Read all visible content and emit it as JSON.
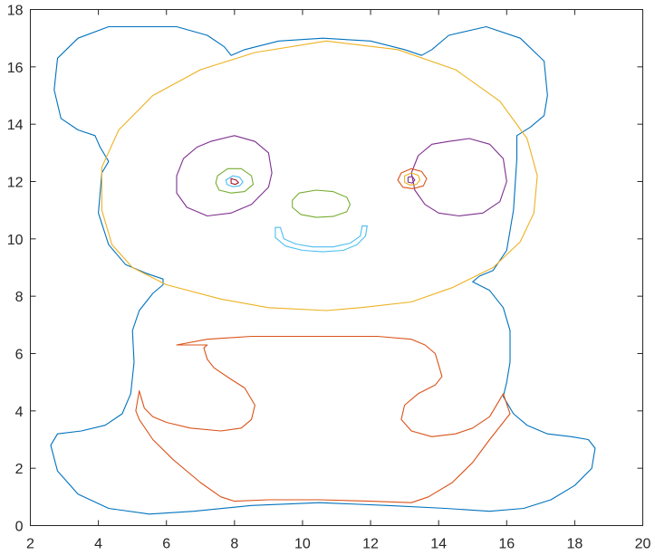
{
  "chart_data": {
    "type": "line",
    "title": "",
    "xlabel": "",
    "ylabel": "",
    "xlim": [
      2,
      20
    ],
    "ylim": [
      0,
      18
    ],
    "xticks": [
      2,
      4,
      6,
      8,
      10,
      12,
      14,
      16,
      18,
      20
    ],
    "yticks": [
      0,
      2,
      4,
      6,
      8,
      10,
      12,
      14,
      16,
      18
    ],
    "grid": false,
    "box": true,
    "series": [
      {
        "color": "#0072BD",
        "closed": true,
        "points": [
          [
            5.3,
            17.4
          ],
          [
            6.3,
            17.4
          ],
          [
            7.2,
            17.1
          ],
          [
            7.7,
            16.7
          ],
          [
            7.9,
            16.4
          ],
          [
            8.3,
            16.6
          ],
          [
            9.3,
            16.9
          ],
          [
            10.6,
            17.0
          ],
          [
            12.0,
            16.9
          ],
          [
            13.0,
            16.6
          ],
          [
            13.5,
            16.4
          ],
          [
            13.8,
            16.6
          ],
          [
            14.3,
            17.1
          ],
          [
            15.4,
            17.4
          ],
          [
            16.4,
            17.0
          ],
          [
            17.1,
            16.2
          ],
          [
            17.2,
            15.0
          ],
          [
            17.1,
            14.3
          ],
          [
            16.7,
            13.9
          ],
          [
            16.3,
            13.6
          ],
          [
            16.3,
            12.8
          ],
          [
            16.2,
            11.0
          ],
          [
            16.0,
            9.6
          ],
          [
            15.6,
            8.9
          ],
          [
            15.2,
            8.7
          ],
          [
            15.0,
            8.5
          ],
          [
            15.5,
            8.2
          ],
          [
            15.9,
            7.6
          ],
          [
            16.1,
            6.8
          ],
          [
            16.1,
            5.7
          ],
          [
            16.0,
            5.0
          ],
          [
            15.9,
            4.5
          ],
          [
            16.2,
            3.9
          ],
          [
            16.6,
            3.5
          ],
          [
            17.2,
            3.2
          ],
          [
            17.9,
            3.1
          ],
          [
            18.4,
            3.0
          ],
          [
            18.6,
            2.7
          ],
          [
            18.5,
            2.0
          ],
          [
            18.0,
            1.4
          ],
          [
            17.3,
            0.9
          ],
          [
            16.5,
            0.6
          ],
          [
            15.5,
            0.5
          ],
          [
            14.2,
            0.6
          ],
          [
            12.5,
            0.7
          ],
          [
            10.5,
            0.8
          ],
          [
            8.5,
            0.7
          ],
          [
            6.8,
            0.5
          ],
          [
            5.5,
            0.4
          ],
          [
            4.3,
            0.6
          ],
          [
            3.4,
            1.1
          ],
          [
            2.8,
            1.9
          ],
          [
            2.6,
            2.8
          ],
          [
            2.8,
            3.2
          ],
          [
            3.5,
            3.3
          ],
          [
            4.2,
            3.5
          ],
          [
            4.7,
            3.9
          ],
          [
            4.95,
            4.6
          ],
          [
            5.05,
            5.7
          ],
          [
            5.0,
            6.8
          ],
          [
            5.2,
            7.5
          ],
          [
            5.6,
            8.1
          ],
          [
            5.9,
            8.4
          ],
          [
            5.9,
            8.6
          ],
          [
            5.4,
            8.8
          ],
          [
            4.8,
            9.1
          ],
          [
            4.3,
            9.8
          ],
          [
            4.0,
            10.9
          ],
          [
            4.1,
            12.3
          ],
          [
            4.3,
            12.7
          ],
          [
            4.05,
            13.2
          ],
          [
            3.9,
            13.6
          ],
          [
            3.4,
            13.8
          ],
          [
            2.9,
            14.2
          ],
          [
            2.7,
            15.2
          ],
          [
            2.8,
            16.3
          ],
          [
            3.4,
            17.0
          ],
          [
            4.3,
            17.4
          ]
        ]
      },
      {
        "color": "#D95319",
        "closed": true,
        "points": [
          [
            6.3,
            6.3
          ],
          [
            7.2,
            6.5
          ],
          [
            8.5,
            6.6
          ],
          [
            10.5,
            6.6
          ],
          [
            12.2,
            6.6
          ],
          [
            13.2,
            6.5
          ],
          [
            13.6,
            6.3
          ],
          [
            13.9,
            6.0
          ],
          [
            14.0,
            5.6
          ],
          [
            14.1,
            5.2
          ],
          [
            13.9,
            4.9
          ],
          [
            13.4,
            4.6
          ],
          [
            13.0,
            4.2
          ],
          [
            12.9,
            3.7
          ],
          [
            13.2,
            3.3
          ],
          [
            13.8,
            3.1
          ],
          [
            14.5,
            3.2
          ],
          [
            15.0,
            3.4
          ],
          [
            15.5,
            3.8
          ],
          [
            15.8,
            4.4
          ],
          [
            15.9,
            4.6
          ],
          [
            16.1,
            3.9
          ],
          [
            15.9,
            3.6
          ],
          [
            15.5,
            3.0
          ],
          [
            15.0,
            2.2
          ],
          [
            14.4,
            1.5
          ],
          [
            13.7,
            1.0
          ],
          [
            13.2,
            0.8
          ],
          [
            12.0,
            0.85
          ],
          [
            10.5,
            0.9
          ],
          [
            9.0,
            0.9
          ],
          [
            8.0,
            0.85
          ],
          [
            7.6,
            1.0
          ],
          [
            7.0,
            1.5
          ],
          [
            6.2,
            2.3
          ],
          [
            5.6,
            3.0
          ],
          [
            5.2,
            3.7
          ],
          [
            5.1,
            4.0
          ],
          [
            5.2,
            4.7
          ],
          [
            5.35,
            4.1
          ],
          [
            5.6,
            3.8
          ],
          [
            6.0,
            3.6
          ],
          [
            6.7,
            3.4
          ],
          [
            7.6,
            3.3
          ],
          [
            8.2,
            3.4
          ],
          [
            8.5,
            3.7
          ],
          [
            8.6,
            4.2
          ],
          [
            8.3,
            4.8
          ],
          [
            7.9,
            5.1
          ],
          [
            7.4,
            5.5
          ],
          [
            7.2,
            5.8
          ],
          [
            7.1,
            6.2
          ],
          [
            7.2,
            6.3
          ]
        ]
      },
      {
        "color": "#EDB120",
        "closed": true,
        "points": [
          [
            4.1,
            12.5
          ],
          [
            4.6,
            13.8
          ],
          [
            5.6,
            15.0
          ],
          [
            7.0,
            15.9
          ],
          [
            8.6,
            16.5
          ],
          [
            10.7,
            16.9
          ],
          [
            12.8,
            16.6
          ],
          [
            14.5,
            15.9
          ],
          [
            15.8,
            14.8
          ],
          [
            16.6,
            13.5
          ],
          [
            16.9,
            12.2
          ],
          [
            16.8,
            10.9
          ],
          [
            16.4,
            9.9
          ],
          [
            15.6,
            9.0
          ],
          [
            14.4,
            8.3
          ],
          [
            13.2,
            7.8
          ],
          [
            11.7,
            7.6
          ],
          [
            10.7,
            7.5
          ],
          [
            9.0,
            7.6
          ],
          [
            7.6,
            7.9
          ],
          [
            6.0,
            8.4
          ],
          [
            5.0,
            9.0
          ],
          [
            4.4,
            9.8
          ],
          [
            4.1,
            11.0
          ]
        ]
      },
      {
        "color": "#7E2F8E",
        "closed": true,
        "points": [
          [
            7.3,
            13.4
          ],
          [
            8.0,
            13.6
          ],
          [
            8.6,
            13.4
          ],
          [
            9.0,
            13.0
          ],
          [
            9.1,
            12.3
          ],
          [
            9.0,
            11.8
          ],
          [
            8.5,
            11.2
          ],
          [
            7.9,
            10.9
          ],
          [
            7.2,
            10.8
          ],
          [
            6.6,
            11.1
          ],
          [
            6.3,
            11.6
          ],
          [
            6.3,
            12.2
          ],
          [
            6.5,
            12.8
          ],
          [
            6.9,
            13.2
          ]
        ]
      },
      {
        "color": "#7E2F8E",
        "closed": true,
        "points": [
          [
            14.3,
            13.4
          ],
          [
            14.9,
            13.5
          ],
          [
            15.5,
            13.3
          ],
          [
            15.9,
            12.8
          ],
          [
            16.0,
            12.0
          ],
          [
            15.8,
            11.3
          ],
          [
            15.3,
            10.9
          ],
          [
            14.6,
            10.8
          ],
          [
            14.0,
            10.9
          ],
          [
            13.6,
            11.2
          ],
          [
            13.3,
            11.7
          ],
          [
            13.2,
            12.3
          ],
          [
            13.4,
            12.9
          ],
          [
            13.8,
            13.3
          ]
        ]
      },
      {
        "color": "#77AC30",
        "closed": true,
        "points": [
          [
            7.5,
            12.2
          ],
          [
            7.8,
            12.45
          ],
          [
            8.2,
            12.45
          ],
          [
            8.5,
            12.2
          ],
          [
            8.55,
            11.9
          ],
          [
            8.3,
            11.65
          ],
          [
            7.9,
            11.6
          ],
          [
            7.55,
            11.7
          ],
          [
            7.45,
            11.95
          ]
        ]
      },
      {
        "color": "#4DBEEE",
        "closed": true,
        "points": [
          [
            7.75,
            12.05
          ],
          [
            7.95,
            12.2
          ],
          [
            8.15,
            12.15
          ],
          [
            8.25,
            11.98
          ],
          [
            8.15,
            11.85
          ],
          [
            7.95,
            11.82
          ],
          [
            7.78,
            11.9
          ]
        ]
      },
      {
        "color": "#A2142F",
        "closed": true,
        "points": [
          [
            7.9,
            12.1
          ],
          [
            8.05,
            12.05
          ],
          [
            8.12,
            11.96
          ],
          [
            8.02,
            11.9
          ],
          [
            7.9,
            11.94
          ]
        ]
      },
      {
        "color": "#D95319",
        "closed": true,
        "points": [
          [
            12.9,
            12.3
          ],
          [
            13.2,
            12.45
          ],
          [
            13.5,
            12.35
          ],
          [
            13.65,
            12.1
          ],
          [
            13.55,
            11.85
          ],
          [
            13.25,
            11.75
          ],
          [
            12.95,
            11.8
          ],
          [
            12.8,
            12.05
          ]
        ]
      },
      {
        "color": "#EDB120",
        "closed": true,
        "points": [
          [
            13.0,
            12.2
          ],
          [
            13.2,
            12.3
          ],
          [
            13.4,
            12.22
          ],
          [
            13.45,
            12.05
          ],
          [
            13.35,
            11.9
          ],
          [
            13.15,
            11.88
          ],
          [
            13.0,
            11.97
          ]
        ]
      },
      {
        "color": "#7E2F8E",
        "closed": true,
        "points": [
          [
            13.1,
            12.15
          ],
          [
            13.22,
            12.18
          ],
          [
            13.3,
            12.05
          ],
          [
            13.22,
            11.95
          ],
          [
            13.1,
            11.98
          ]
        ]
      },
      {
        "color": "#77AC30",
        "closed": true,
        "points": [
          [
            9.9,
            11.6
          ],
          [
            10.4,
            11.7
          ],
          [
            10.9,
            11.65
          ],
          [
            11.3,
            11.45
          ],
          [
            11.4,
            11.2
          ],
          [
            11.3,
            10.95
          ],
          [
            10.9,
            10.78
          ],
          [
            10.4,
            10.75
          ],
          [
            9.95,
            10.85
          ],
          [
            9.7,
            11.1
          ],
          [
            9.7,
            11.35
          ]
        ]
      },
      {
        "color": "#4DBEEE",
        "closed": true,
        "points": [
          [
            9.2,
            10.4
          ],
          [
            9.2,
            10.05
          ],
          [
            9.5,
            9.75
          ],
          [
            10.0,
            9.6
          ],
          [
            10.6,
            9.55
          ],
          [
            11.2,
            9.6
          ],
          [
            11.6,
            9.8
          ],
          [
            11.85,
            10.1
          ],
          [
            11.9,
            10.45
          ],
          [
            11.75,
            10.45
          ],
          [
            11.7,
            10.1
          ],
          [
            11.4,
            9.85
          ],
          [
            10.9,
            9.72
          ],
          [
            10.3,
            9.72
          ],
          [
            9.8,
            9.82
          ],
          [
            9.45,
            10.0
          ],
          [
            9.35,
            10.4
          ]
        ]
      }
    ]
  }
}
